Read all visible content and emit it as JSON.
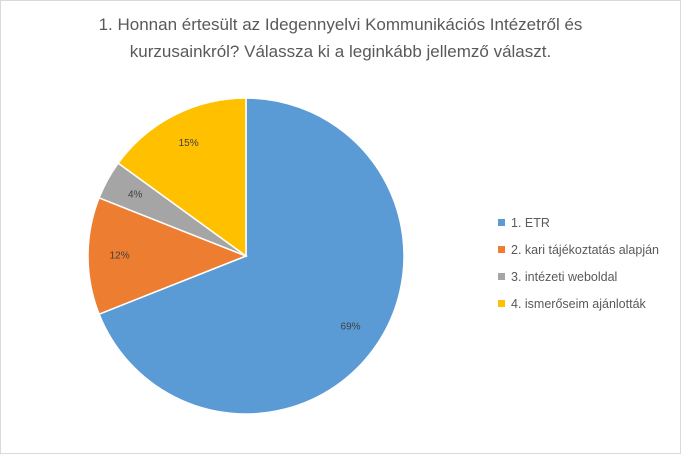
{
  "chart_data": {
    "type": "pie",
    "title_lines": [
      "1. Honnan értesült az Idegennyelvi Kommunikációs Intézetről és",
      "kurzusainkról? Válassza ki a leginkább jellemző választ."
    ],
    "start": "12 o'clock, clockwise",
    "series": [
      {
        "name": "1. ETR",
        "value": 69,
        "label": "69%",
        "color": "#5b9bd5"
      },
      {
        "name": "2. kari tájékoztatás alapján",
        "value": 12,
        "label": "12%",
        "color": "#ed7d31"
      },
      {
        "name": "3. intézeti weboldal",
        "value": 4,
        "label": "4%",
        "color": "#a5a5a5"
      },
      {
        "name": "4. ismerőseim ajánlották",
        "value": 15,
        "label": "15%",
        "color": "#ffc000"
      }
    ],
    "legend_position": "right"
  }
}
